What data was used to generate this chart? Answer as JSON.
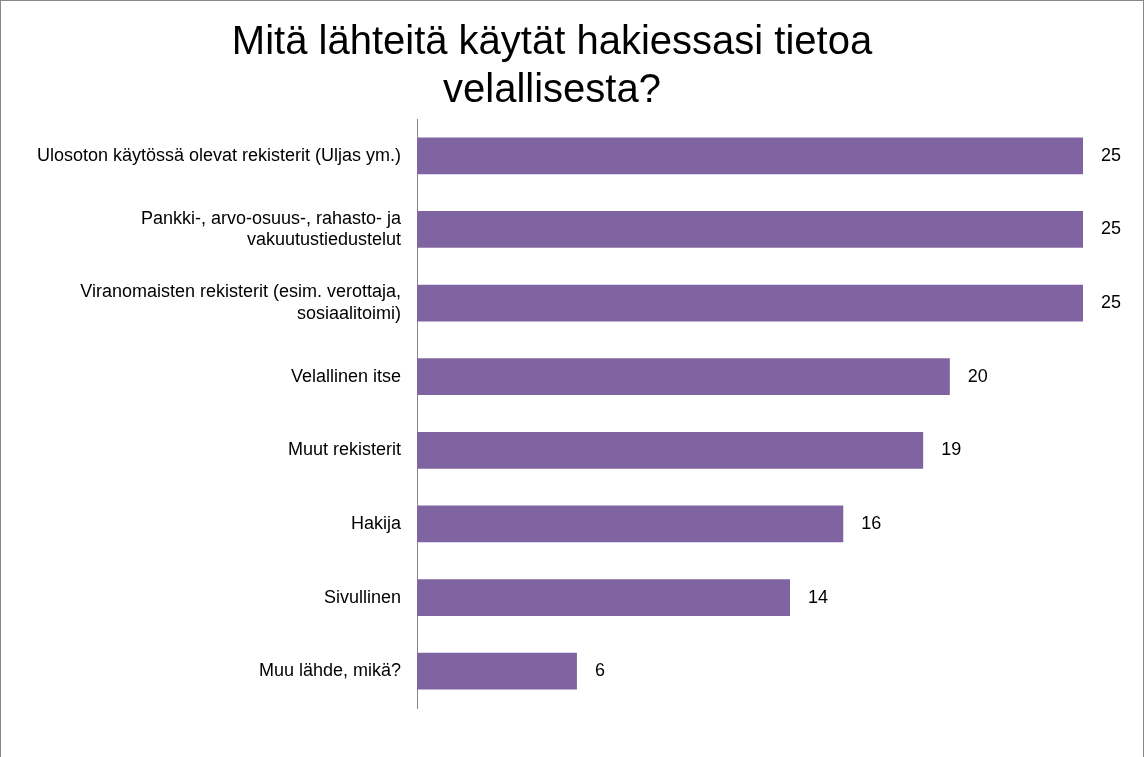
{
  "chart_data": {
    "type": "bar",
    "orientation": "horizontal",
    "title": "Mitä lähteitä käytät hakiessasi tietoa velallisesta?",
    "categories": [
      "Ulosoton käytössä olevat rekisterit (Uljas ym.)",
      "Pankki-, arvo-osuus-, rahasto- ja vakuutustiedustelut",
      "Viranomaisten rekisterit (esim. verottaja, sosiaalitoimi)",
      "Velallinen itse",
      "Muut rekisterit",
      "Hakija",
      "Sivullinen",
      "Muu lähde, mikä?"
    ],
    "values": [
      25,
      25,
      25,
      20,
      19,
      16,
      14,
      6
    ],
    "color": "#8064a2",
    "data_labels": true,
    "legend": false
  }
}
